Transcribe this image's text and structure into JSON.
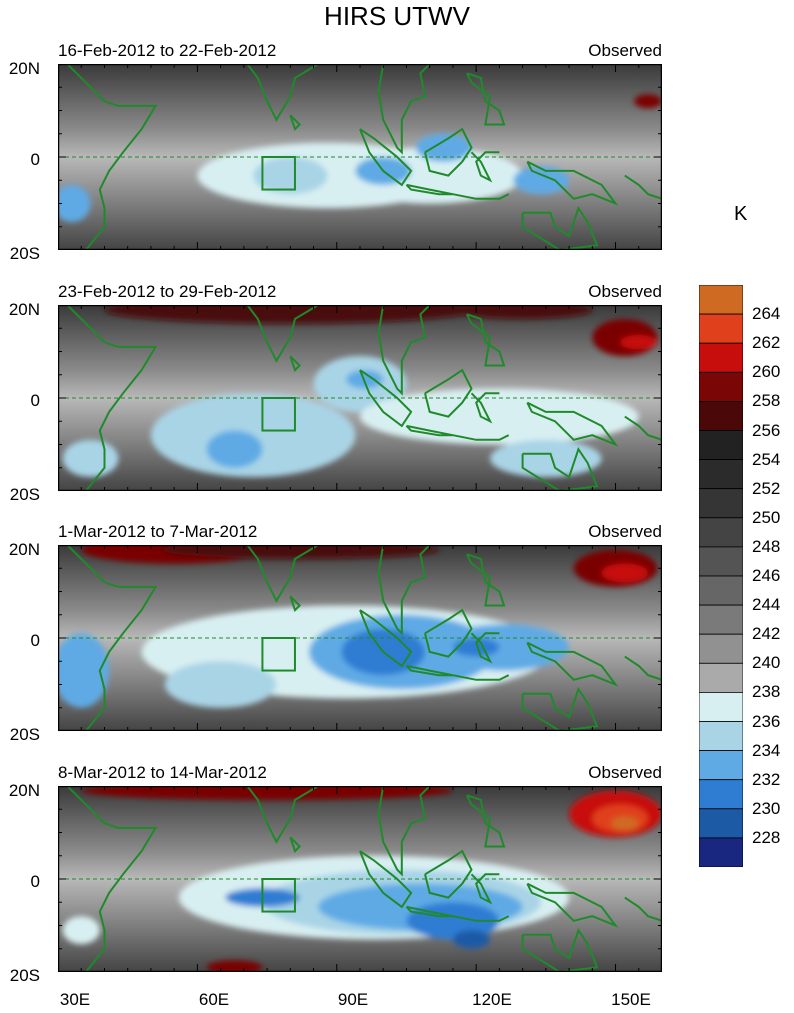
{
  "title": "HIRS UTWV",
  "units": "K",
  "panels": [
    {
      "date_range": "16-Feb-2012 to 22-Feb-2012",
      "type_label": "Observed"
    },
    {
      "date_range": "23-Feb-2012 to 29-Feb-2012",
      "type_label": "Observed"
    },
    {
      "date_range": "1-Mar-2012 to 7-Mar-2012",
      "type_label": "Observed"
    },
    {
      "date_range": "8-Mar-2012 to 14-Mar-2012",
      "type_label": "Observed"
    }
  ],
  "lat_ticks": [
    "20N",
    "0",
    "20S"
  ],
  "lon_ticks": [
    "30E",
    "60E",
    "90E",
    "120E",
    "150E"
  ],
  "colorbar": {
    "labels": [
      "264",
      "262",
      "260",
      "258",
      "256",
      "254",
      "252",
      "250",
      "248",
      "246",
      "244",
      "242",
      "240",
      "238",
      "236",
      "234",
      "232",
      "230",
      "228"
    ],
    "colors": [
      "#cf6a23",
      "#e0401c",
      "#c80d0d",
      "#7a0606",
      "#4a0808",
      "#222222",
      "#2b2b2b",
      "#353535",
      "#444444",
      "#545454",
      "#666666",
      "#7a7a7a",
      "#919191",
      "#aaaaaa",
      "#d8eff2",
      "#a9d4e6",
      "#5faae5",
      "#2f7dd3",
      "#1d5aa6",
      "#1a2780"
    ]
  },
  "map_data": {
    "lon_range": [
      30,
      160
    ],
    "lat_range": [
      -20,
      20
    ],
    "box_region": {
      "lon": [
        74,
        81
      ],
      "lat": [
        -7,
        0
      ]
    },
    "panels": [
      {
        "moist": [
          {
            "cx": 88,
            "cy": -4,
            "rx": 28,
            "ry": 7,
            "c": "#d8eff2"
          },
          {
            "cx": 110,
            "cy": -4,
            "rx": 20,
            "ry": 6,
            "c": "#d8eff2"
          },
          {
            "cx": 100,
            "cy": -3,
            "rx": 6,
            "ry": 3,
            "c": "#5faae5"
          },
          {
            "cx": 134,
            "cy": -5,
            "rx": 6,
            "ry": 3,
            "c": "#5faae5"
          },
          {
            "cx": 33,
            "cy": -10,
            "rx": 4,
            "ry": 4,
            "c": "#5faae5"
          },
          {
            "cx": 80,
            "cy": -4,
            "rx": 8,
            "ry": 4,
            "c": "#a9d4e6"
          },
          {
            "cx": 113,
            "cy": 2,
            "rx": 6,
            "ry": 3,
            "c": "#5faae5"
          }
        ],
        "dry": [
          {
            "cx": 157,
            "cy": 12,
            "rx": 3,
            "ry": 1.5,
            "c": "#7a0606"
          }
        ]
      },
      {
        "moist": [
          {
            "cx": 72,
            "cy": -8,
            "rx": 22,
            "ry": 9,
            "c": "#a9d4e6"
          },
          {
            "cx": 95,
            "cy": 3,
            "rx": 10,
            "ry": 6,
            "c": "#a9d4e6"
          },
          {
            "cx": 125,
            "cy": -4,
            "rx": 30,
            "ry": 6,
            "c": "#d8eff2"
          },
          {
            "cx": 135,
            "cy": -13,
            "rx": 12,
            "ry": 4,
            "c": "#a9d4e6"
          },
          {
            "cx": 68,
            "cy": -11,
            "rx": 6,
            "ry": 4,
            "c": "#5faae5"
          },
          {
            "cx": 96,
            "cy": 4,
            "rx": 4,
            "ry": 2,
            "c": "#5faae5"
          },
          {
            "cx": 37,
            "cy": -13,
            "rx": 6,
            "ry": 4,
            "c": "#a9d4e6"
          }
        ],
        "dry": [
          {
            "cx": 80,
            "cy": 19,
            "rx": 40,
            "ry": 3,
            "c": "#4a0808"
          },
          {
            "cx": 152,
            "cy": 13,
            "rx": 7,
            "ry": 4,
            "c": "#7a0606"
          },
          {
            "cx": 155,
            "cy": 12,
            "rx": 4,
            "ry": 1.5,
            "c": "#c80d0d"
          },
          {
            "cx": 130,
            "cy": 19,
            "rx": 15,
            "ry": 2,
            "c": "#4a0808"
          }
        ]
      },
      {
        "moist": [
          {
            "cx": 92,
            "cy": -3,
            "rx": 44,
            "ry": 10,
            "c": "#d8eff2"
          },
          {
            "cx": 104,
            "cy": -3,
            "rx": 20,
            "ry": 8,
            "c": "#5faae5"
          },
          {
            "cx": 100,
            "cy": -3,
            "rx": 9,
            "ry": 5,
            "c": "#2f7dd3"
          },
          {
            "cx": 126,
            "cy": -2,
            "rx": 14,
            "ry": 5,
            "c": "#5faae5"
          },
          {
            "cx": 120,
            "cy": -2,
            "rx": 5,
            "ry": 2,
            "c": "#2f7dd3"
          },
          {
            "cx": 35,
            "cy": -7,
            "rx": 6,
            "ry": 8,
            "c": "#5faae5"
          },
          {
            "cx": 65,
            "cy": -10,
            "rx": 12,
            "ry": 5,
            "c": "#a9d4e6"
          }
        ],
        "dry": [
          {
            "cx": 55,
            "cy": 19,
            "rx": 20,
            "ry": 3,
            "c": "#7a0606"
          },
          {
            "cx": 150,
            "cy": 15,
            "rx": 9,
            "ry": 4,
            "c": "#7a0606"
          },
          {
            "cx": 152,
            "cy": 14,
            "rx": 5,
            "ry": 2,
            "c": "#c80d0d"
          },
          {
            "cx": 82,
            "cy": 19,
            "rx": 30,
            "ry": 2,
            "c": "#4a0808"
          }
        ]
      },
      {
        "moist": [
          {
            "cx": 98,
            "cy": -4,
            "rx": 42,
            "ry": 9,
            "c": "#d8eff2"
          },
          {
            "cx": 104,
            "cy": -5,
            "rx": 30,
            "ry": 7,
            "c": "#a9d4e6"
          },
          {
            "cx": 108,
            "cy": -6,
            "rx": 22,
            "ry": 5,
            "c": "#5faae5"
          },
          {
            "cx": 115,
            "cy": -9,
            "rx": 10,
            "ry": 4,
            "c": "#2f7dd3"
          },
          {
            "cx": 119,
            "cy": -13,
            "rx": 4,
            "ry": 2,
            "c": "#1d5aa6"
          },
          {
            "cx": 74,
            "cy": -4,
            "rx": 8,
            "ry": 2,
            "c": "#2f7dd3"
          },
          {
            "cx": 35,
            "cy": -11,
            "rx": 4,
            "ry": 3,
            "c": "#d8eff2"
          }
        ],
        "dry": [
          {
            "cx": 150,
            "cy": 14,
            "rx": 10,
            "ry": 5,
            "c": "#c80d0d"
          },
          {
            "cx": 151,
            "cy": 13,
            "rx": 6,
            "ry": 3,
            "c": "#e0401c"
          },
          {
            "cx": 152,
            "cy": 12,
            "rx": 3,
            "ry": 1.5,
            "c": "#cf6a23"
          },
          {
            "cx": 75,
            "cy": 19,
            "rx": 40,
            "ry": 2,
            "c": "#7a0606"
          },
          {
            "cx": 68,
            "cy": -19,
            "rx": 6,
            "ry": 1.5,
            "c": "#7a0606"
          }
        ]
      }
    ]
  }
}
